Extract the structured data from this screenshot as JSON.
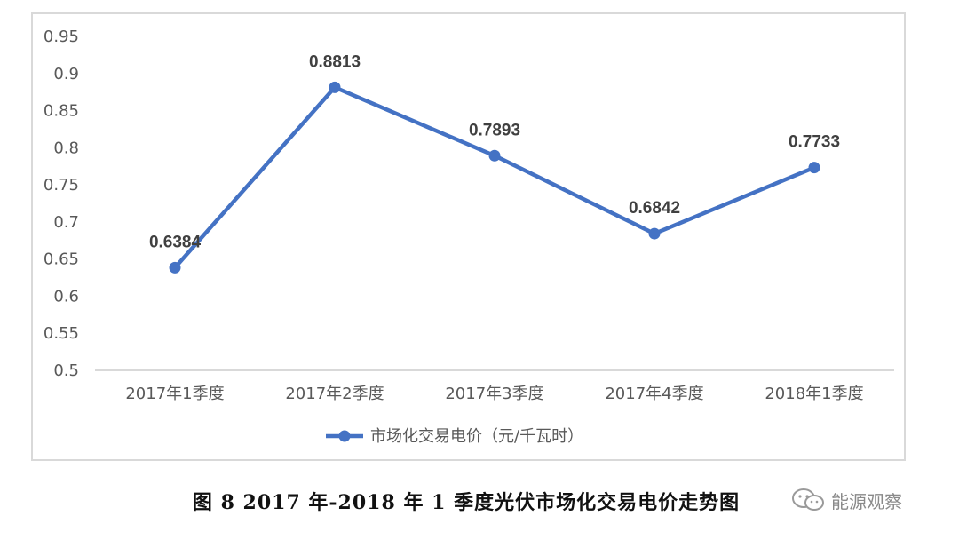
{
  "chart_data": {
    "type": "line",
    "categories": [
      "2017年1季度",
      "2017年2季度",
      "2017年3季度",
      "2017年4季度",
      "2018年1季度"
    ],
    "series": [
      {
        "name": "市场化交易电价（元/千瓦时）",
        "values": [
          0.6384,
          0.8813,
          0.7893,
          0.6842,
          0.7733
        ]
      }
    ],
    "data_labels": [
      "0.6384",
      "0.8813",
      "0.7893",
      "0.6842",
      "0.7733"
    ],
    "yticks": [
      "0.5",
      "0.55",
      "0.6",
      "0.65",
      "0.7",
      "0.75",
      "0.8",
      "0.85",
      "0.9",
      "0.95"
    ],
    "ylim": [
      0.5,
      0.95
    ],
    "grid": false,
    "legend_position": "bottom",
    "line_color": "#4472c4",
    "title": "",
    "xlabel": "",
    "ylabel": ""
  },
  "caption": "图 8  2017 年-2018 年 1 季度光伏市场化交易电价走势图",
  "watermark": {
    "text": "能源观察",
    "icon": "wechat-icon"
  }
}
